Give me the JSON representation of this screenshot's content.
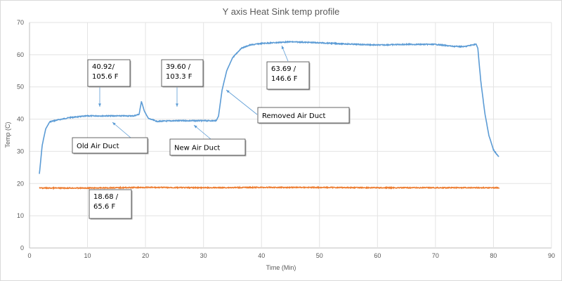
{
  "chart_data": {
    "type": "line",
    "title": "Y axis Heat Sink temp profile",
    "xlabel": "Time (Min)",
    "ylabel": "Temp (C)",
    "xlim": [
      0,
      90
    ],
    "ylim": [
      0,
      70
    ],
    "xticks": [
      0,
      10,
      20,
      30,
      40,
      50,
      60,
      70,
      80,
      90
    ],
    "yticks": [
      0,
      10,
      20,
      30,
      40,
      50,
      60,
      70
    ],
    "grid": true,
    "legend": "none",
    "series": [
      {
        "color": "#5b9bd5",
        "points": [
          [
            1.7,
            23
          ],
          [
            2.2,
            32
          ],
          [
            2.8,
            37
          ],
          [
            3.5,
            39.2
          ],
          [
            5,
            39.8
          ],
          [
            7,
            40.5
          ],
          [
            10,
            41
          ],
          [
            15,
            41
          ],
          [
            18,
            41
          ],
          [
            18.9,
            41.5
          ],
          [
            19.3,
            45.5
          ],
          [
            19.8,
            42.5
          ],
          [
            20.5,
            40.2
          ],
          [
            22,
            39.3
          ],
          [
            25,
            39.5
          ],
          [
            28,
            39.5
          ],
          [
            32.2,
            39.5
          ],
          [
            32.6,
            41
          ],
          [
            33.2,
            49
          ],
          [
            34,
            55
          ],
          [
            35,
            59
          ],
          [
            36.5,
            62
          ],
          [
            38,
            63
          ],
          [
            40,
            63.5
          ],
          [
            45,
            64
          ],
          [
            50,
            63.7
          ],
          [
            55,
            63.3
          ],
          [
            60,
            63
          ],
          [
            65,
            63.2
          ],
          [
            70,
            63.2
          ],
          [
            73,
            62.6
          ],
          [
            75,
            62.5
          ],
          [
            77,
            63.3
          ],
          [
            77.3,
            62
          ],
          [
            77.8,
            52
          ],
          [
            78.5,
            42
          ],
          [
            79.2,
            35
          ],
          [
            80,
            30.5
          ],
          [
            80.9,
            28.3
          ]
        ]
      },
      {
        "color": "#ed7d31",
        "points": [
          [
            1.7,
            18.6
          ],
          [
            10,
            18.6
          ],
          [
            20,
            18.8
          ],
          [
            30,
            18.7
          ],
          [
            40,
            18.8
          ],
          [
            50,
            18.8
          ],
          [
            60,
            18.7
          ],
          [
            70,
            18.7
          ],
          [
            81,
            18.7
          ]
        ]
      }
    ],
    "annotations": [
      {
        "id": "old-peak",
        "lines": [
          "40.92/",
          "105.6 F"
        ]
      },
      {
        "id": "new-peak",
        "lines": [
          "39.60 /",
          "103.3 F"
        ]
      },
      {
        "id": "removed-peak",
        "lines": [
          "63.69 /",
          "146.6 F"
        ]
      },
      {
        "id": "removed-label",
        "lines": [
          "Removed Air Duct"
        ]
      },
      {
        "id": "old-label",
        "lines": [
          "Old Air Duct"
        ]
      },
      {
        "id": "new-label",
        "lines": [
          "New Air Duct"
        ]
      },
      {
        "id": "ambient",
        "lines": [
          "18.68 /",
          "65.6 F"
        ]
      }
    ]
  }
}
